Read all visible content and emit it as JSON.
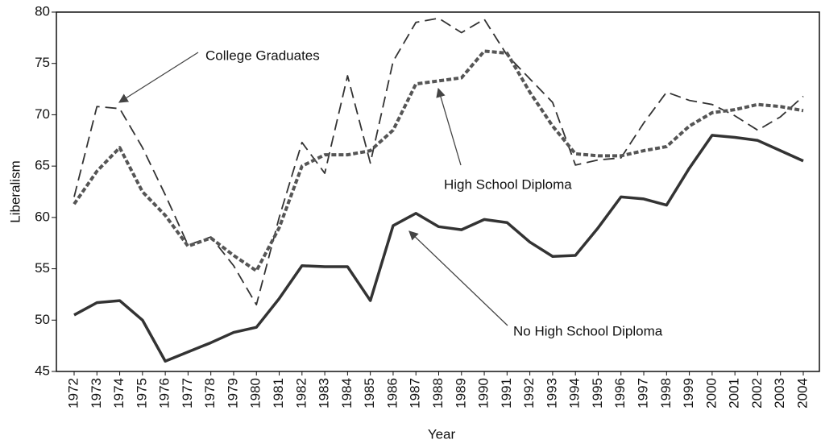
{
  "chart_data": {
    "type": "line",
    "x_label": "Year",
    "y_label": "Liberalism",
    "categories": [
      "1972",
      "1973",
      "1974",
      "1975",
      "1976",
      "1977",
      "1978",
      "1979",
      "1980",
      "1981",
      "1982",
      "1983",
      "1984",
      "1985",
      "1986",
      "1987",
      "1988",
      "1989",
      "1990",
      "1991",
      "1992",
      "1993",
      "1994",
      "1995",
      "1996",
      "1997",
      "1998",
      "1999",
      "2000",
      "2001",
      "2002",
      "2003",
      "2004"
    ],
    "series": [
      {
        "name": "College Graduates",
        "color": "#333333",
        "values": [
          62.0,
          70.8,
          70.6,
          66.8,
          62.2,
          57.3,
          58.1,
          55.3,
          51.5,
          60.0,
          67.3,
          64.3,
          73.8,
          65.3,
          75.2,
          79.0,
          79.4,
          78.0,
          79.3,
          75.8,
          73.5,
          71.2,
          65.1,
          65.6,
          65.8,
          69.2,
          72.2,
          71.4,
          71.0,
          69.9,
          68.5,
          69.8,
          71.8
        ]
      },
      {
        "name": "High School Diploma",
        "color": "#555555",
        "values": [
          61.3,
          64.5,
          66.8,
          62.5,
          60.2,
          57.2,
          58.0,
          56.3,
          54.8,
          59.0,
          65.0,
          66.1,
          66.1,
          66.5,
          68.5,
          73.0,
          73.3,
          73.6,
          76.2,
          76.0,
          72.2,
          68.9,
          66.2,
          66.0,
          66.0,
          66.5,
          66.9,
          68.9,
          70.2,
          70.5,
          71.0,
          70.8,
          70.4
        ]
      },
      {
        "name": "No High School Diploma",
        "color": "#333333",
        "values": [
          50.5,
          51.7,
          51.9,
          50.0,
          46.0,
          46.9,
          47.8,
          48.8,
          49.3,
          52.1,
          55.3,
          55.2,
          55.2,
          51.9,
          59.2,
          60.4,
          59.1,
          58.8,
          59.8,
          59.5,
          57.6,
          56.2,
          56.3,
          59.0,
          62.0,
          61.8,
          61.2,
          64.8,
          68.0,
          67.8,
          67.5,
          66.5,
          65.5
        ]
      }
    ],
    "ylim": [
      45,
      80
    ],
    "yticks": [
      45,
      50,
      55,
      60,
      65,
      70,
      75,
      80
    ],
    "grid": false
  }
}
